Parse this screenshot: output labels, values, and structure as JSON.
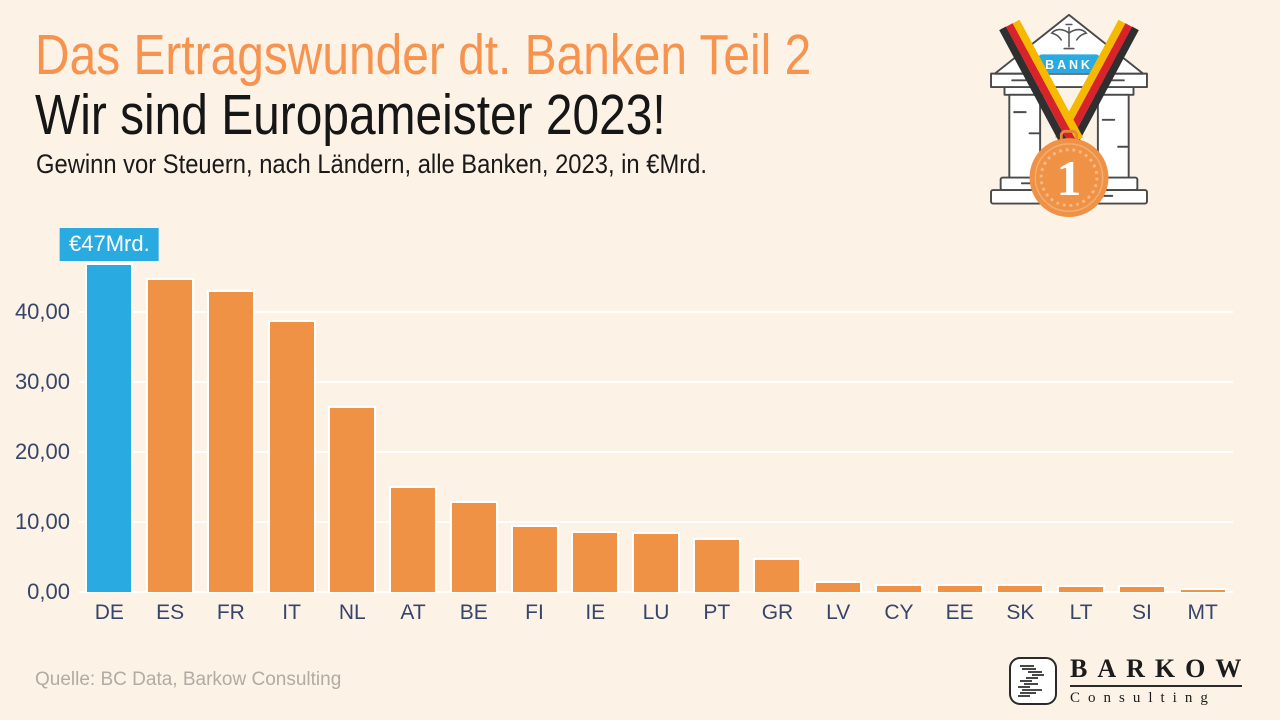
{
  "theme": {
    "background": "#FCF2E6",
    "title_orange": "#F6934E",
    "bar_orange": "#F09245",
    "highlight_blue": "#29ABE2",
    "axis_text": "#36456A",
    "grid_white": "#FFFFFF",
    "source_gray": "#B1ABA3",
    "text_dark": "#161616"
  },
  "header": {
    "title": "Das Ertragswunder dt. Banken Teil 2",
    "subtitle": "Wir sind Europameister 2023!",
    "description": "Gewinn vor Steuern, nach Ländern, alle Banken, 2023, in €Mrd."
  },
  "badge": {
    "bank_sign": "BANK",
    "medal_number": "1"
  },
  "chart_data": {
    "type": "bar",
    "title": "Gewinn vor Steuern, nach Ländern, alle Banken, 2023, in €Mrd.",
    "categories": [
      "DE",
      "ES",
      "FR",
      "IT",
      "NL",
      "AT",
      "BE",
      "FI",
      "IE",
      "LU",
      "PT",
      "GR",
      "LV",
      "CY",
      "EE",
      "SK",
      "LT",
      "SI",
      "MT"
    ],
    "values": [
      47.0,
      44.9,
      43.2,
      38.8,
      26.6,
      15.2,
      13.0,
      9.6,
      8.7,
      8.6,
      7.7,
      4.9,
      1.6,
      1.2,
      1.1,
      1.2,
      1.0,
      1.0,
      0.5
    ],
    "unit": "€Mrd.",
    "bar_color": "#F09245",
    "highlight": {
      "index": 0,
      "label": "€47Mrd.",
      "color": "#29ABE2"
    },
    "ylim": [
      0,
      50
    ],
    "yticks": [
      0,
      10,
      20,
      30,
      40
    ],
    "ytick_labels": [
      "0,00",
      "10,00",
      "20,00",
      "30,00",
      "40,00"
    ],
    "grid": true,
    "legend": false
  },
  "footer": {
    "source": "Quelle: BC Data, Barkow Consulting"
  },
  "logo": {
    "name": "BARKOW",
    "subname": "Consulting"
  }
}
